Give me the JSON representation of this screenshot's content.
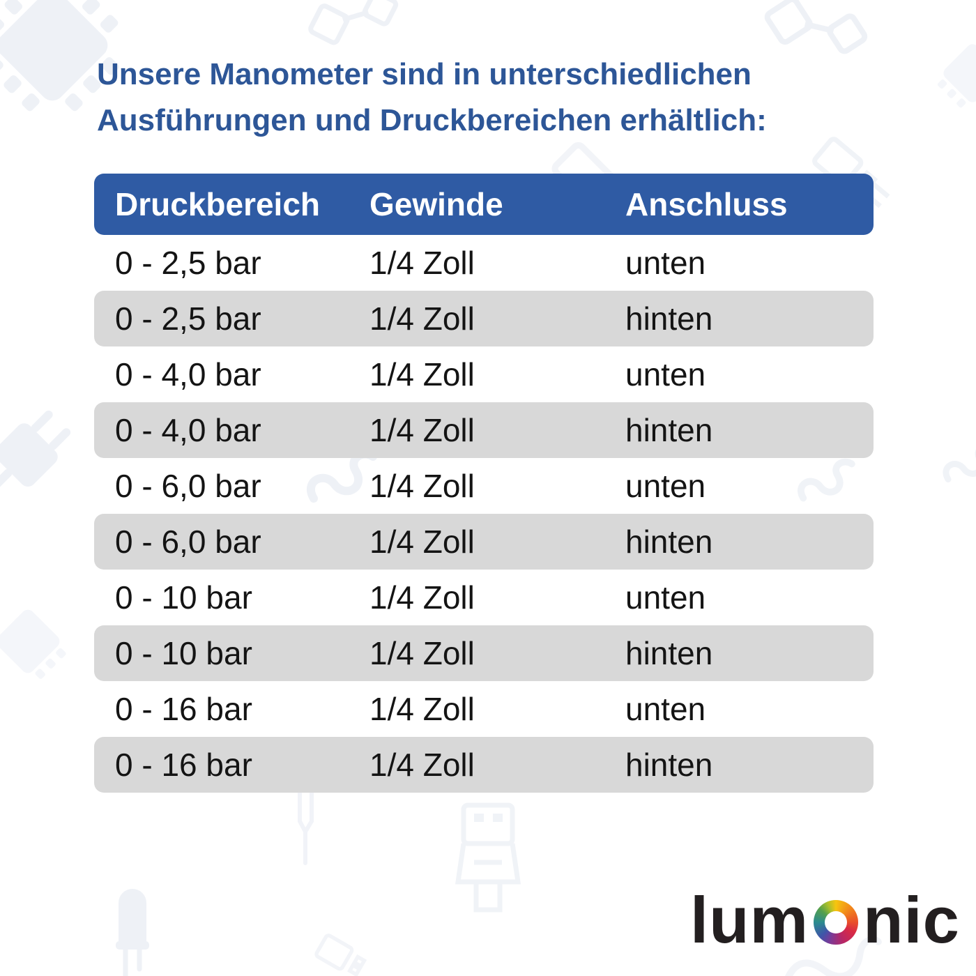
{
  "page": {
    "background": "#ffffff",
    "watermark_color": "#ebeef5"
  },
  "title": {
    "line1": "Unsere Manometer sind in unterschiedlichen",
    "line2": "Ausführungen und Druckbereichen erhältlich:",
    "color": "#2d5697"
  },
  "table": {
    "headers": [
      "Druckbereich",
      "Gewinde",
      "Anschluss"
    ],
    "header_bg": "#2f5ba4",
    "header_text_color": "#ffffff",
    "row_alt_bg": "#d8d8d8",
    "text_color": "#141414",
    "rows": [
      [
        "0 - 2,5 bar",
        "1/4 Zoll",
        "unten"
      ],
      [
        "0 - 2,5 bar",
        "1/4 Zoll",
        "hinten"
      ],
      [
        "0 - 4,0 bar",
        "1/4 Zoll",
        "unten"
      ],
      [
        "0 - 4,0 bar",
        "1/4 Zoll",
        "hinten"
      ],
      [
        "0 - 6,0 bar",
        "1/4 Zoll",
        "unten"
      ],
      [
        "0 - 6,0 bar",
        "1/4 Zoll",
        "hinten"
      ],
      [
        "0 - 10 bar",
        "1/4 Zoll",
        "unten"
      ],
      [
        "0 - 10 bar",
        "1/4 Zoll",
        "hinten"
      ],
      [
        "0 - 16 bar",
        "1/4 Zoll",
        "unten"
      ],
      [
        "0 - 16 bar",
        "1/4 Zoll",
        "hinten"
      ]
    ]
  },
  "logo": {
    "prefix": "lum",
    "suffix": "nic",
    "text_color": "#231f20",
    "ring_colors": [
      "#f6c50f",
      "#f1861b",
      "#e94e2a",
      "#d92a45",
      "#b82765",
      "#7a3a97",
      "#3f55a9",
      "#2b8b8f",
      "#55a04b",
      "#a8bf2e"
    ]
  },
  "background_icons": [
    "chip-icon",
    "diamond-chain-icon",
    "connector-icon",
    "plug-icon",
    "spring-icon",
    "screwdriver-icon",
    "led-icon",
    "usb-connector-icon",
    "squiggle-icon"
  ]
}
